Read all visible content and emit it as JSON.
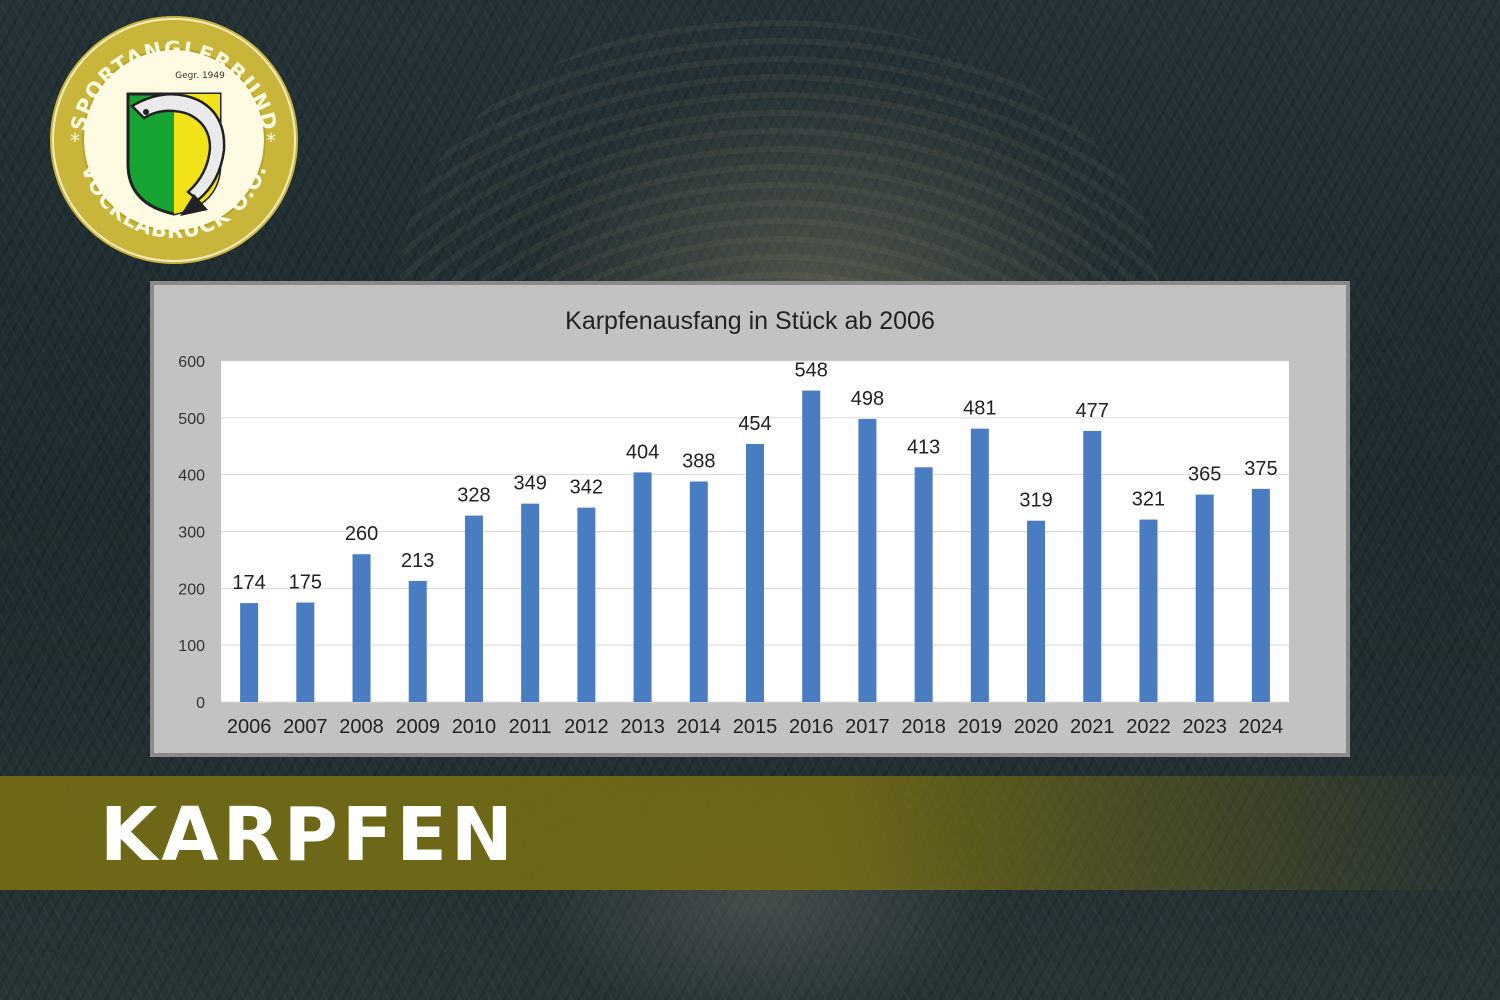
{
  "logo": {
    "ring_text_top": "SPORTANGLERBUND",
    "ring_text_bottom": "VÖCKLABRUCK O.Ö.",
    "founded": "Gegr. 1949",
    "colors": {
      "ring": "#c9b53a",
      "inner": "#fffbe3",
      "shield_green": "#18a434",
      "shield_yellow": "#f2e318"
    }
  },
  "banner": {
    "title": "KARPFEN"
  },
  "chart_data": {
    "type": "bar",
    "title": "Karpfenausfang in Stück ab 2006",
    "xlabel": "",
    "ylabel": "",
    "categories": [
      "2006",
      "2007",
      "2008",
      "2009",
      "2010",
      "2011",
      "2012",
      "2013",
      "2014",
      "2015",
      "2016",
      "2017",
      "2018",
      "2019",
      "2020",
      "2021",
      "2022",
      "2023",
      "2024"
    ],
    "values": [
      174,
      175,
      260,
      213,
      328,
      349,
      342,
      404,
      388,
      454,
      548,
      498,
      413,
      481,
      319,
      477,
      321,
      365,
      375
    ],
    "ylim": [
      0,
      600
    ],
    "yticks": [
      0,
      100,
      200,
      300,
      400,
      500,
      600
    ],
    "grid": true,
    "legend": "none",
    "data_labels": true,
    "colors": {
      "bar": "#4a7cc2",
      "plot_bg": "#ffffff",
      "chart_bg": "#c2c2c2",
      "grid": "#d9d9d9"
    }
  }
}
